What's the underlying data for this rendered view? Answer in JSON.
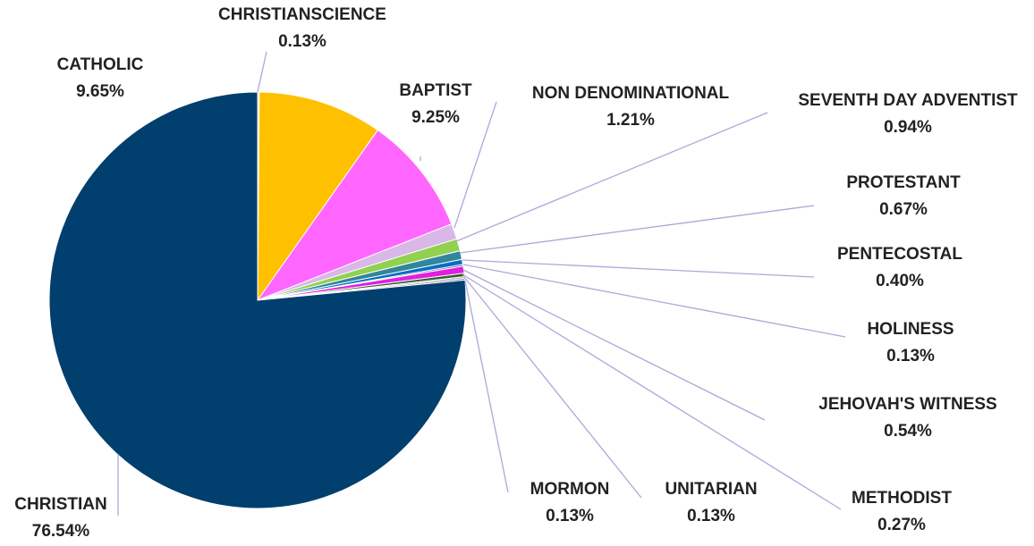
{
  "chart_data": {
    "type": "pie",
    "title": "",
    "slices": [
      {
        "label": "CHRISTIAN",
        "value_text": "76.54%",
        "value": 76.54,
        "color": "#003f6e"
      },
      {
        "label": "CATHOLIC",
        "value_text": "9.65%",
        "value": 9.65,
        "color": "#ffc000"
      },
      {
        "label": "BAPTIST",
        "value_text": "9.25%",
        "value": 9.25,
        "color": "#ff66ff"
      },
      {
        "label": "NON DENOMINATIONAL",
        "value_text": "1.21%",
        "value": 1.21,
        "color": "#d9b8e8"
      },
      {
        "label": "SEVENTH DAY ADVENTIST",
        "value_text": "0.94%",
        "value": 0.94,
        "color": "#92d050"
      },
      {
        "label": "PROTESTANT",
        "value_text": "0.67%",
        "value": 0.67,
        "color": "#31859c"
      },
      {
        "label": "PENTECOSTAL",
        "value_text": "0.40%",
        "value": 0.4,
        "color": "#0070c0"
      },
      {
        "label": "HOLINESS",
        "value_text": "0.13%",
        "value": 0.13,
        "color": "#7030a0"
      },
      {
        "label": "JEHOVAH'S WITNESS",
        "value_text": "0.54%",
        "value": 0.54,
        "color": "#e020e0"
      },
      {
        "label": "METHODIST",
        "value_text": "0.27%",
        "value": 0.27,
        "color": "#2e5e2e"
      },
      {
        "label": "UNITARIAN",
        "value_text": "0.13%",
        "value": 0.13,
        "color": "#a0a0a0"
      },
      {
        "label": "MORMON",
        "value_text": "0.13%",
        "value": 0.13,
        "color": "#8064a2"
      },
      {
        "label": "CHRISTIANSCIENCE",
        "value_text": "0.13%",
        "value": 0.13,
        "color": "#ffe699"
      }
    ],
    "leader_line_color": "#a9a9d9"
  }
}
